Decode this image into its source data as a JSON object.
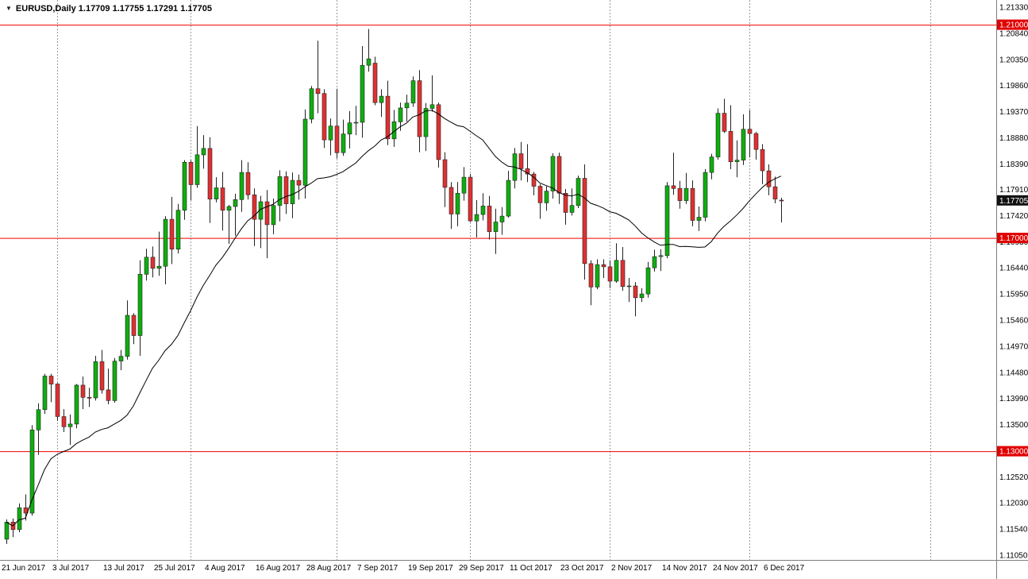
{
  "window": {
    "symbol_line": "EURUSD,Daily 1.17709 1.17755 1.17291 1.17705"
  },
  "chart_data": {
    "type": "candlestick",
    "symbol": "EURUSD",
    "timeframe": "Daily",
    "ylim": [
      1.1105,
      1.2133
    ],
    "grid": "vertical-month-separators-only",
    "ma_period": 20,
    "candles": [
      [
        1.1135,
        1.1172,
        1.1126,
        1.1167
      ],
      [
        1.1167,
        1.1174,
        1.1139,
        1.1153
      ],
      [
        1.1153,
        1.1202,
        1.1148,
        1.1194
      ],
      [
        1.1194,
        1.1219,
        1.117,
        1.1184
      ],
      [
        1.1184,
        1.1349,
        1.1179,
        1.134
      ],
      [
        1.134,
        1.139,
        1.1293,
        1.1378
      ],
      [
        1.1378,
        1.1445,
        1.137,
        1.1441
      ],
      [
        1.1441,
        1.1445,
        1.1392,
        1.1426
      ],
      [
        1.1426,
        1.1428,
        1.1357,
        1.1365
      ],
      [
        1.1365,
        1.1379,
        1.1336,
        1.1346
      ],
      [
        1.1346,
        1.1369,
        1.1312,
        1.1351
      ],
      [
        1.1351,
        1.1426,
        1.1343,
        1.1424
      ],
      [
        1.1424,
        1.144,
        1.1379,
        1.1401
      ],
      [
        1.1401,
        1.1419,
        1.1383,
        1.14
      ],
      [
        1.14,
        1.1479,
        1.1395,
        1.1468
      ],
      [
        1.1468,
        1.149,
        1.1408,
        1.1415
      ],
      [
        1.1415,
        1.1455,
        1.1388,
        1.1395
      ],
      [
        1.1395,
        1.1475,
        1.1391,
        1.1469
      ],
      [
        1.1469,
        1.149,
        1.1452,
        1.1478
      ],
      [
        1.1478,
        1.1583,
        1.1472,
        1.1555
      ],
      [
        1.1555,
        1.1559,
        1.1501,
        1.1517
      ],
      [
        1.1517,
        1.1658,
        1.1479,
        1.1632
      ],
      [
        1.1632,
        1.168,
        1.162,
        1.1664
      ],
      [
        1.1664,
        1.1684,
        1.1626,
        1.1643
      ],
      [
        1.1643,
        1.1712,
        1.1629,
        1.1647
      ],
      [
        1.1647,
        1.1741,
        1.1613,
        1.1735
      ],
      [
        1.1735,
        1.1777,
        1.1651,
        1.1679
      ],
      [
        1.1679,
        1.1764,
        1.1671,
        1.1752
      ],
      [
        1.1752,
        1.1846,
        1.1734,
        1.1842
      ],
      [
        1.1842,
        1.1846,
        1.1771,
        1.18
      ],
      [
        1.18,
        1.191,
        1.1794,
        1.1856
      ],
      [
        1.1856,
        1.1893,
        1.183,
        1.1868
      ],
      [
        1.1868,
        1.1889,
        1.1728,
        1.1773
      ],
      [
        1.1773,
        1.1814,
        1.1767,
        1.1794
      ],
      [
        1.1794,
        1.1824,
        1.1714,
        1.1752
      ],
      [
        1.1752,
        1.1762,
        1.1689,
        1.1759
      ],
      [
        1.1759,
        1.1783,
        1.1704,
        1.1772
      ],
      [
        1.1772,
        1.1846,
        1.1749,
        1.1823
      ],
      [
        1.1823,
        1.1842,
        1.1772,
        1.1781
      ],
      [
        1.1781,
        1.1793,
        1.1685,
        1.1735
      ],
      [
        1.1735,
        1.1779,
        1.1681,
        1.1768
      ],
      [
        1.1768,
        1.179,
        1.1662,
        1.1725
      ],
      [
        1.1725,
        1.1774,
        1.1707,
        1.1761
      ],
      [
        1.1761,
        1.1827,
        1.1731,
        1.1815
      ],
      [
        1.1815,
        1.1825,
        1.1745,
        1.1764
      ],
      [
        1.1764,
        1.1823,
        1.1737,
        1.1808
      ],
      [
        1.1808,
        1.1819,
        1.1772,
        1.1799
      ],
      [
        1.1799,
        1.1941,
        1.1774,
        1.1923
      ],
      [
        1.1923,
        1.1985,
        1.1915,
        1.198
      ],
      [
        1.198,
        1.207,
        1.1934,
        1.1971
      ],
      [
        1.1971,
        1.1979,
        1.1869,
        1.1884
      ],
      [
        1.1884,
        1.1924,
        1.1855,
        1.191
      ],
      [
        1.191,
        1.198,
        1.1849,
        1.186
      ],
      [
        1.186,
        1.1922,
        1.1854,
        1.1895
      ],
      [
        1.1895,
        1.1938,
        1.1868,
        1.1916
      ],
      [
        1.1916,
        1.1948,
        1.1893,
        1.1917
      ],
      [
        1.1917,
        1.206,
        1.1888,
        1.2024
      ],
      [
        1.2024,
        1.2092,
        1.2012,
        1.2036
      ],
      [
        1.2028,
        1.204,
        1.1949,
        1.1954
      ],
      [
        1.1954,
        1.1979,
        1.1927,
        1.1966
      ],
      [
        1.1966,
        1.1995,
        1.1874,
        1.1886
      ],
      [
        1.1886,
        1.194,
        1.1871,
        1.1918
      ],
      [
        1.1918,
        1.1954,
        1.1901,
        1.1944
      ],
      [
        1.1944,
        1.1969,
        1.1918,
        1.1953
      ],
      [
        1.1953,
        1.2003,
        1.1946,
        1.1995
      ],
      [
        1.1995,
        1.2015,
        1.1861,
        1.189
      ],
      [
        1.189,
        1.1953,
        1.1863,
        1.1943
      ],
      [
        1.1943,
        1.2005,
        1.1937,
        1.195
      ],
      [
        1.195,
        1.1954,
        1.1832,
        1.1847
      ],
      [
        1.1847,
        1.1861,
        1.1758,
        1.1795
      ],
      [
        1.1795,
        1.1805,
        1.1717,
        1.1745
      ],
      [
        1.1745,
        1.1805,
        1.1722,
        1.1784
      ],
      [
        1.1784,
        1.1833,
        1.177,
        1.1814
      ],
      [
        1.1814,
        1.182,
        1.173,
        1.1732
      ],
      [
        1.1732,
        1.1771,
        1.1701,
        1.1744
      ],
      [
        1.1744,
        1.1784,
        1.1733,
        1.176
      ],
      [
        1.176,
        1.1779,
        1.1697,
        1.1712
      ],
      [
        1.1712,
        1.1755,
        1.167,
        1.173
      ],
      [
        1.173,
        1.1758,
        1.1706,
        1.1741
      ],
      [
        1.1741,
        1.1826,
        1.1738,
        1.1808
      ],
      [
        1.1808,
        1.1869,
        1.1793,
        1.1858
      ],
      [
        1.1858,
        1.188,
        1.1808,
        1.183
      ],
      [
        1.183,
        1.1876,
        1.1805,
        1.182
      ],
      [
        1.182,
        1.1824,
        1.178,
        1.1797
      ],
      [
        1.1797,
        1.1801,
        1.1736,
        1.1766
      ],
      [
        1.1766,
        1.1797,
        1.1751,
        1.1788
      ],
      [
        1.1788,
        1.1859,
        1.1774,
        1.1853
      ],
      [
        1.1853,
        1.186,
        1.1764,
        1.1784
      ],
      [
        1.1784,
        1.1792,
        1.1725,
        1.1748
      ],
      [
        1.1748,
        1.1793,
        1.1742,
        1.1761
      ],
      [
        1.1761,
        1.1817,
        1.1756,
        1.1812
      ],
      [
        1.1812,
        1.1838,
        1.1622,
        1.1652
      ],
      [
        1.1652,
        1.1658,
        1.1574,
        1.1608
      ],
      [
        1.1608,
        1.166,
        1.1604,
        1.165
      ],
      [
        1.165,
        1.166,
        1.1625,
        1.1646
      ],
      [
        1.1646,
        1.1658,
        1.1606,
        1.1619
      ],
      [
        1.1619,
        1.169,
        1.1616,
        1.1658
      ],
      [
        1.1658,
        1.1683,
        1.1601,
        1.1609
      ],
      [
        1.1609,
        1.1625,
        1.158,
        1.161
      ],
      [
        1.161,
        1.1617,
        1.1553,
        1.1588
      ],
      [
        1.1588,
        1.1606,
        1.158,
        1.1595
      ],
      [
        1.1595,
        1.1655,
        1.1588,
        1.1644
      ],
      [
        1.1644,
        1.1678,
        1.1637,
        1.1665
      ],
      [
        1.1665,
        1.1679,
        1.1638,
        1.1667
      ],
      [
        1.1667,
        1.1805,
        1.1662,
        1.1798
      ],
      [
        1.1798,
        1.186,
        1.1781,
        1.1793
      ],
      [
        1.1793,
        1.1807,
        1.1755,
        1.177
      ],
      [
        1.177,
        1.1822,
        1.1764,
        1.1793
      ],
      [
        1.1793,
        1.1808,
        1.1722,
        1.1733
      ],
      [
        1.1733,
        1.1759,
        1.1713,
        1.1739
      ],
      [
        1.1739,
        1.1829,
        1.1731,
        1.1823
      ],
      [
        1.1823,
        1.1858,
        1.181,
        1.1852
      ],
      [
        1.1852,
        1.1943,
        1.1847,
        1.1934
      ],
      [
        1.1934,
        1.1961,
        1.1897,
        1.19
      ],
      [
        1.19,
        1.1949,
        1.1829,
        1.1843
      ],
      [
        1.1843,
        1.1883,
        1.1814,
        1.1846
      ],
      [
        1.1846,
        1.1932,
        1.1837,
        1.1904
      ],
      [
        1.1904,
        1.194,
        1.1851,
        1.1896
      ],
      [
        1.1896,
        1.1899,
        1.1847,
        1.1866
      ],
      [
        1.1866,
        1.1876,
        1.1801,
        1.1826
      ],
      [
        1.1826,
        1.1838,
        1.178,
        1.1796
      ],
      [
        1.1796,
        1.1815,
        1.1765,
        1.1773
      ],
      [
        1.17709,
        1.17755,
        1.17291,
        1.17705
      ]
    ],
    "x_labels": [
      {
        "t": "21 Jun 2017",
        "i": 0
      },
      {
        "t": "3 Jul 2017",
        "i": 8
      },
      {
        "t": "13 Jul 2017",
        "i": 16
      },
      {
        "t": "25 Jul 2017",
        "i": 24
      },
      {
        "t": "4 Aug 2017",
        "i": 32
      },
      {
        "t": "16 Aug 2017",
        "i": 40
      },
      {
        "t": "28 Aug 2017",
        "i": 48
      },
      {
        "t": "7 Sep 2017",
        "i": 56
      },
      {
        "t": "19 Sep 2017",
        "i": 64
      },
      {
        "t": "29 Sep 2017",
        "i": 72
      },
      {
        "t": "11 Oct 2017",
        "i": 80
      },
      {
        "t": "23 Oct 2017",
        "i": 88
      },
      {
        "t": "2 Nov 2017",
        "i": 96
      },
      {
        "t": "14 Nov 2017",
        "i": 104
      },
      {
        "t": "24 Nov 2017",
        "i": 112
      },
      {
        "t": "6 Dec 2017",
        "i": 120
      }
    ],
    "month_separators_i": [
      8,
      29,
      52,
      73,
      95,
      117
    ],
    "extra_separator_x": 1172,
    "y_ticks": [
      "1.21330",
      "1.20840",
      "1.20350",
      "1.19860",
      "1.19370",
      "1.18880",
      "1.18390",
      "1.17910",
      "1.17420",
      "1.16930",
      "1.16440",
      "1.15950",
      "1.15460",
      "1.14970",
      "1.14480",
      "1.13990",
      "1.13500",
      "1.12520",
      "1.12030",
      "1.11540",
      "1.11050"
    ],
    "hlines": [
      {
        "price": 1.21,
        "label": "1.21000"
      },
      {
        "price": 1.17,
        "label": "1.17000"
      },
      {
        "price": 1.13,
        "label": "1.13000"
      }
    ],
    "current_price": {
      "price": 1.17705,
      "label": "1.17705"
    },
    "colors": {
      "up_fill": "#0eae0e",
      "up_border": "#222222",
      "down_fill": "#e03030",
      "down_border": "#222222",
      "ma": "#000000",
      "hline": "#f40000",
      "hline_tag_bg": "#e00000",
      "price_tag_bg": "#111111",
      "separator": "#9a9a9a",
      "axis_border": "#7e7e7e",
      "text": "#000000"
    }
  }
}
